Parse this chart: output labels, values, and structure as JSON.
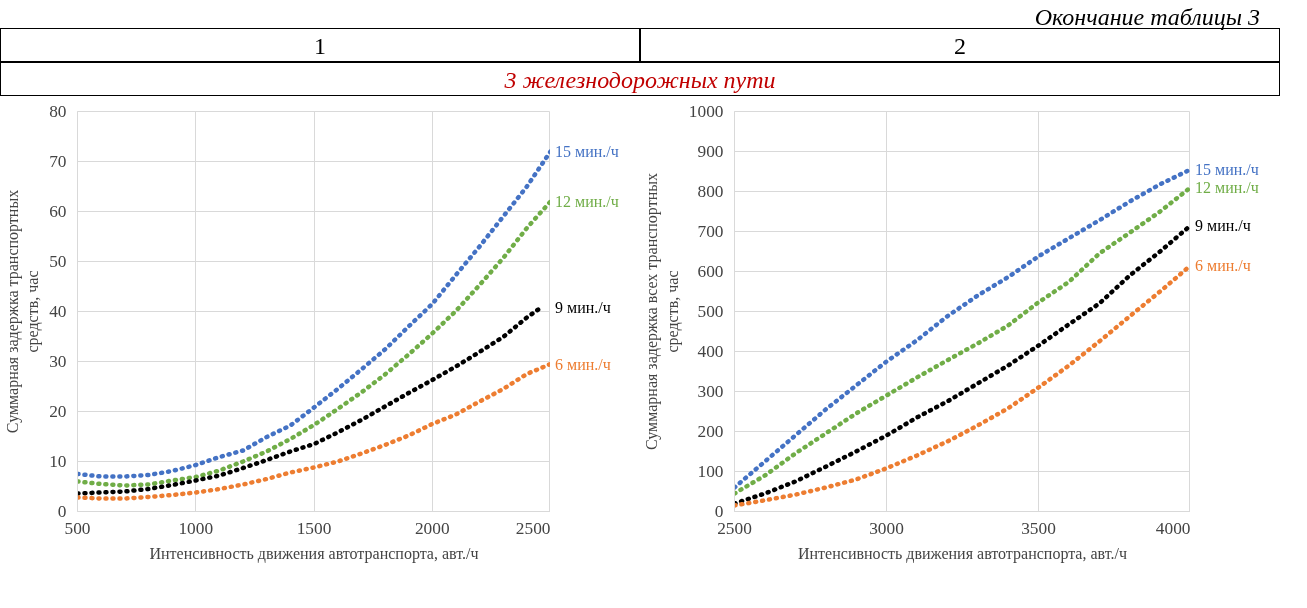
{
  "chart_data": [
    {
      "type": "line",
      "title": "1",
      "subtitle": "3 железнодорожных пути",
      "annotations": [
        "Окончание таблицы 3"
      ],
      "xlabel": "Интенсивность движения автотранспорта, авт./ч",
      "ylabel": "Суммарная задержка транспортных средств, час",
      "x": [
        500,
        600,
        700,
        800,
        900,
        1000,
        1100,
        1200,
        1300,
        1400,
        1500,
        1600,
        1700,
        1800,
        1900,
        2000,
        2100,
        2200,
        2300,
        2400,
        2500
      ],
      "xlim": [
        500,
        2500
      ],
      "xticks": [
        500,
        1000,
        1500,
        2000,
        2500
      ],
      "ylim": [
        0,
        80
      ],
      "yticks": [
        0,
        10,
        20,
        30,
        40,
        50,
        60,
        70,
        80
      ],
      "grid": true,
      "marker": "none",
      "line_style": "dotted",
      "series": [
        {
          "name": "15 мин./ч",
          "color": "#4472c4",
          "values": [
            7.5,
            7.0,
            7.0,
            7.3,
            8.1,
            9.3,
            10.9,
            12.2,
            14.9,
            17.2,
            20.8,
            24.5,
            28.4,
            32.4,
            37.0,
            41.5,
            47.3,
            53.0,
            59.0,
            65.0,
            72.0
          ]
        },
        {
          "name": "12 мин./ч",
          "color": "#70ad47",
          "values": [
            6.0,
            5.5,
            5.2,
            5.4,
            6.2,
            6.9,
            8.2,
            10.0,
            12.0,
            14.5,
            17.3,
            20.5,
            23.8,
            27.4,
            31.4,
            35.6,
            40.1,
            45.3,
            50.7,
            56.7,
            62.0
          ]
        },
        {
          "name": "9 мин./ч",
          "color": "#000000",
          "x": [
            500,
            600,
            700,
            800,
            900,
            1000,
            1100,
            1200,
            1300,
            1400,
            1500,
            1600,
            1700,
            1800,
            1900,
            2000,
            2100,
            2200,
            2300,
            2400,
            2460
          ],
          "values": [
            3.6,
            3.8,
            4.0,
            4.5,
            5.3,
            6.2,
            7.2,
            8.7,
            10.3,
            12.0,
            13.5,
            15.8,
            18.3,
            21.0,
            23.7,
            26.3,
            29.0,
            31.9,
            34.9,
            38.8,
            40.8
          ]
        },
        {
          "name": "6 мин./ч",
          "color": "#ed7d31",
          "values": [
            2.8,
            2.6,
            2.6,
            2.9,
            3.3,
            3.8,
            4.5,
            5.4,
            6.5,
            7.8,
            8.8,
            10.0,
            11.6,
            13.3,
            15.2,
            17.5,
            19.4,
            22.0,
            24.5,
            27.5,
            29.5
          ]
        }
      ]
    },
    {
      "type": "line",
      "title": "2",
      "xlabel": "Интенсивность движения автотранспорта, авт./ч",
      "ylabel": "Суммарная задержка всех транспортных средств, час",
      "x": [
        2500,
        2600,
        2700,
        2800,
        2900,
        3000,
        3100,
        3200,
        3300,
        3400,
        3500,
        3600,
        3700,
        3800,
        3900,
        4000
      ],
      "xlim": [
        2500,
        4000
      ],
      "xticks": [
        2500,
        3000,
        3500,
        4000
      ],
      "ylim": [
        0,
        1000
      ],
      "yticks": [
        0,
        100,
        200,
        300,
        400,
        500,
        600,
        700,
        800,
        900,
        1000
      ],
      "grid": true,
      "marker": "none",
      "line_style": "dotted",
      "series": [
        {
          "name": "15 мин./ч",
          "color": "#4472c4",
          "values": [
            60,
            125,
            190,
            255,
            315,
            375,
            428,
            488,
            540,
            586,
            638,
            683,
            728,
            775,
            818,
            855
          ]
        },
        {
          "name": "12 мин./ч",
          "color": "#70ad47",
          "values": [
            45,
            90,
            145,
            195,
            245,
            290,
            335,
            378,
            420,
            465,
            523,
            574,
            645,
            697,
            750,
            810
          ]
        },
        {
          "name": "9 мин./ч",
          "color": "#000000",
          "values": [
            20,
            45,
            75,
            112,
            150,
            190,
            235,
            275,
            320,
            365,
            415,
            468,
            520,
            590,
            650,
            715
          ]
        },
        {
          "name": "6 мин./ч",
          "color": "#ed7d31",
          "values": [
            15,
            28,
            42,
            60,
            80,
            108,
            140,
            175,
            215,
            258,
            310,
            365,
            425,
            488,
            550,
            615
          ]
        }
      ]
    }
  ]
}
